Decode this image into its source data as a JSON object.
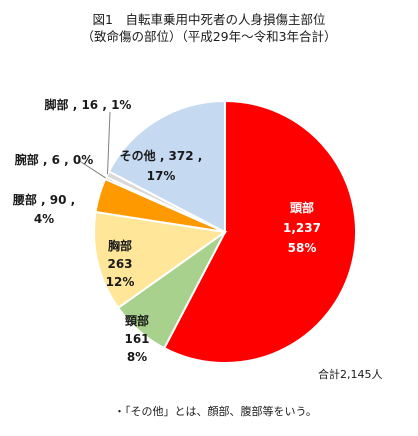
{
  "title_line1": "図1　自転車乗用中死者の人身損傷主部位",
  "title_line2": "（致命傷の部位）（平成29年～令和3年合計）",
  "total_label": "合計2,145人",
  "note": "・「その他」とは、顔部、腹部等をいう。",
  "chart_data": {
    "type": "pie",
    "title": "図1　自転車乗用中死者の人身損傷主部位（致命傷の部位）（平成29年～令和3年合計）",
    "total": 2145,
    "slices": [
      {
        "name": "頭部",
        "value": 1237,
        "value_text": "1,237",
        "percent_text": "58%",
        "color": "#ff0000"
      },
      {
        "name": "頸部",
        "value": 161,
        "value_text": "161",
        "percent_text": "8%",
        "color": "#a9d18e"
      },
      {
        "name": "胸部",
        "value": 263,
        "value_text": "263",
        "percent_text": "12%",
        "color": "#ffe699"
      },
      {
        "name": "腰部",
        "value": 90,
        "value_text": "90",
        "percent_text": "4%",
        "color": "#ff9900"
      },
      {
        "name": "腕部",
        "value": 6,
        "value_text": "6",
        "percent_text": "0%",
        "color": "#808080"
      },
      {
        "name": "脚部",
        "value": 16,
        "value_text": "16",
        "percent_text": "1%",
        "color": "#d9d9d9"
      },
      {
        "name": "その他",
        "value": 372,
        "value_text": "372",
        "percent_text": "17%",
        "color": "#c5d9f1"
      }
    ]
  }
}
